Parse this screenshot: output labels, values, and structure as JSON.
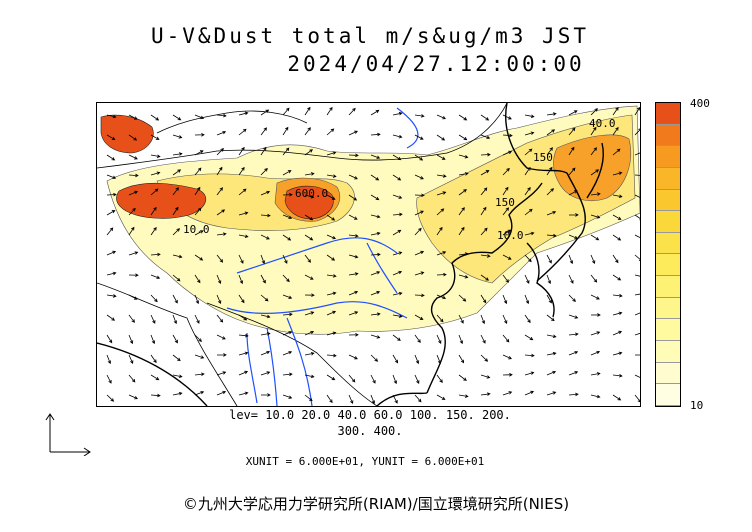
{
  "header": {
    "title": "U-V&Dust total m/s&ug/m3 JST",
    "datetime": "2024/04/27.12:00:00"
  },
  "colorbar": {
    "max_label": "400",
    "min_label": "10",
    "colors": [
      "#e8501a",
      "#f07a1c",
      "#f79a20",
      "#f8b628",
      "#fac82e",
      "#fbd83a",
      "#fce24a",
      "#fdeb5c",
      "#fef275",
      "#fef68a",
      "#fffaa0",
      "#fffcb8",
      "#fffdd0",
      "#fffee3"
    ]
  },
  "levels": {
    "line1": "lev= 10.0 20.0 40.0 60.0 100. 150. 200.",
    "line2": "300. 400."
  },
  "units": "XUNIT = 6.000E+01, YUNIT = 6.000E+01",
  "contour_labels": {
    "a": "40.0",
    "b": "150",
    "c": "150",
    "d": "10.0",
    "e": "10.0",
    "f": "600.0"
  },
  "copyright": "©九州大学応用力学研究所(RIAM)/国立環境研究所(NIES)",
  "colors": {
    "dust_high": "#e8501a",
    "dust_mid": "#fbd83a",
    "dust_low": "#fffbb5",
    "river": "#1f4fff",
    "coast": "#000000"
  }
}
